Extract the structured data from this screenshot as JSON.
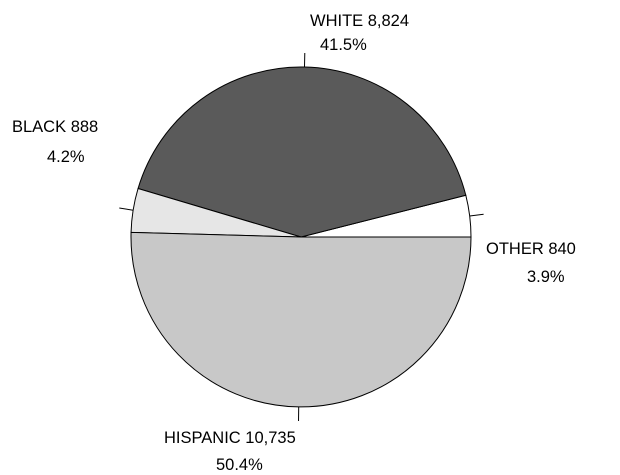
{
  "chart_data": {
    "type": "pie",
    "slices": [
      {
        "name": "OTHER",
        "count_label": "OTHER  840",
        "value": 840,
        "percent_label": "3.9%",
        "color": "#ffffff"
      },
      {
        "name": "WHITE",
        "count_label": "WHITE  8,824",
        "value": 8824,
        "percent_label": "41.5%",
        "color": "#5a5a5a"
      },
      {
        "name": "BLACK",
        "count_label": "BLACK  888",
        "value": 888,
        "percent_label": "4.2%",
        "color": "#e6e6e6"
      },
      {
        "name": "HISPANIC",
        "count_label": "HISPANIC  10,735",
        "value": 10735,
        "percent_label": "50.4%",
        "color": "#c8c8c8"
      }
    ]
  }
}
